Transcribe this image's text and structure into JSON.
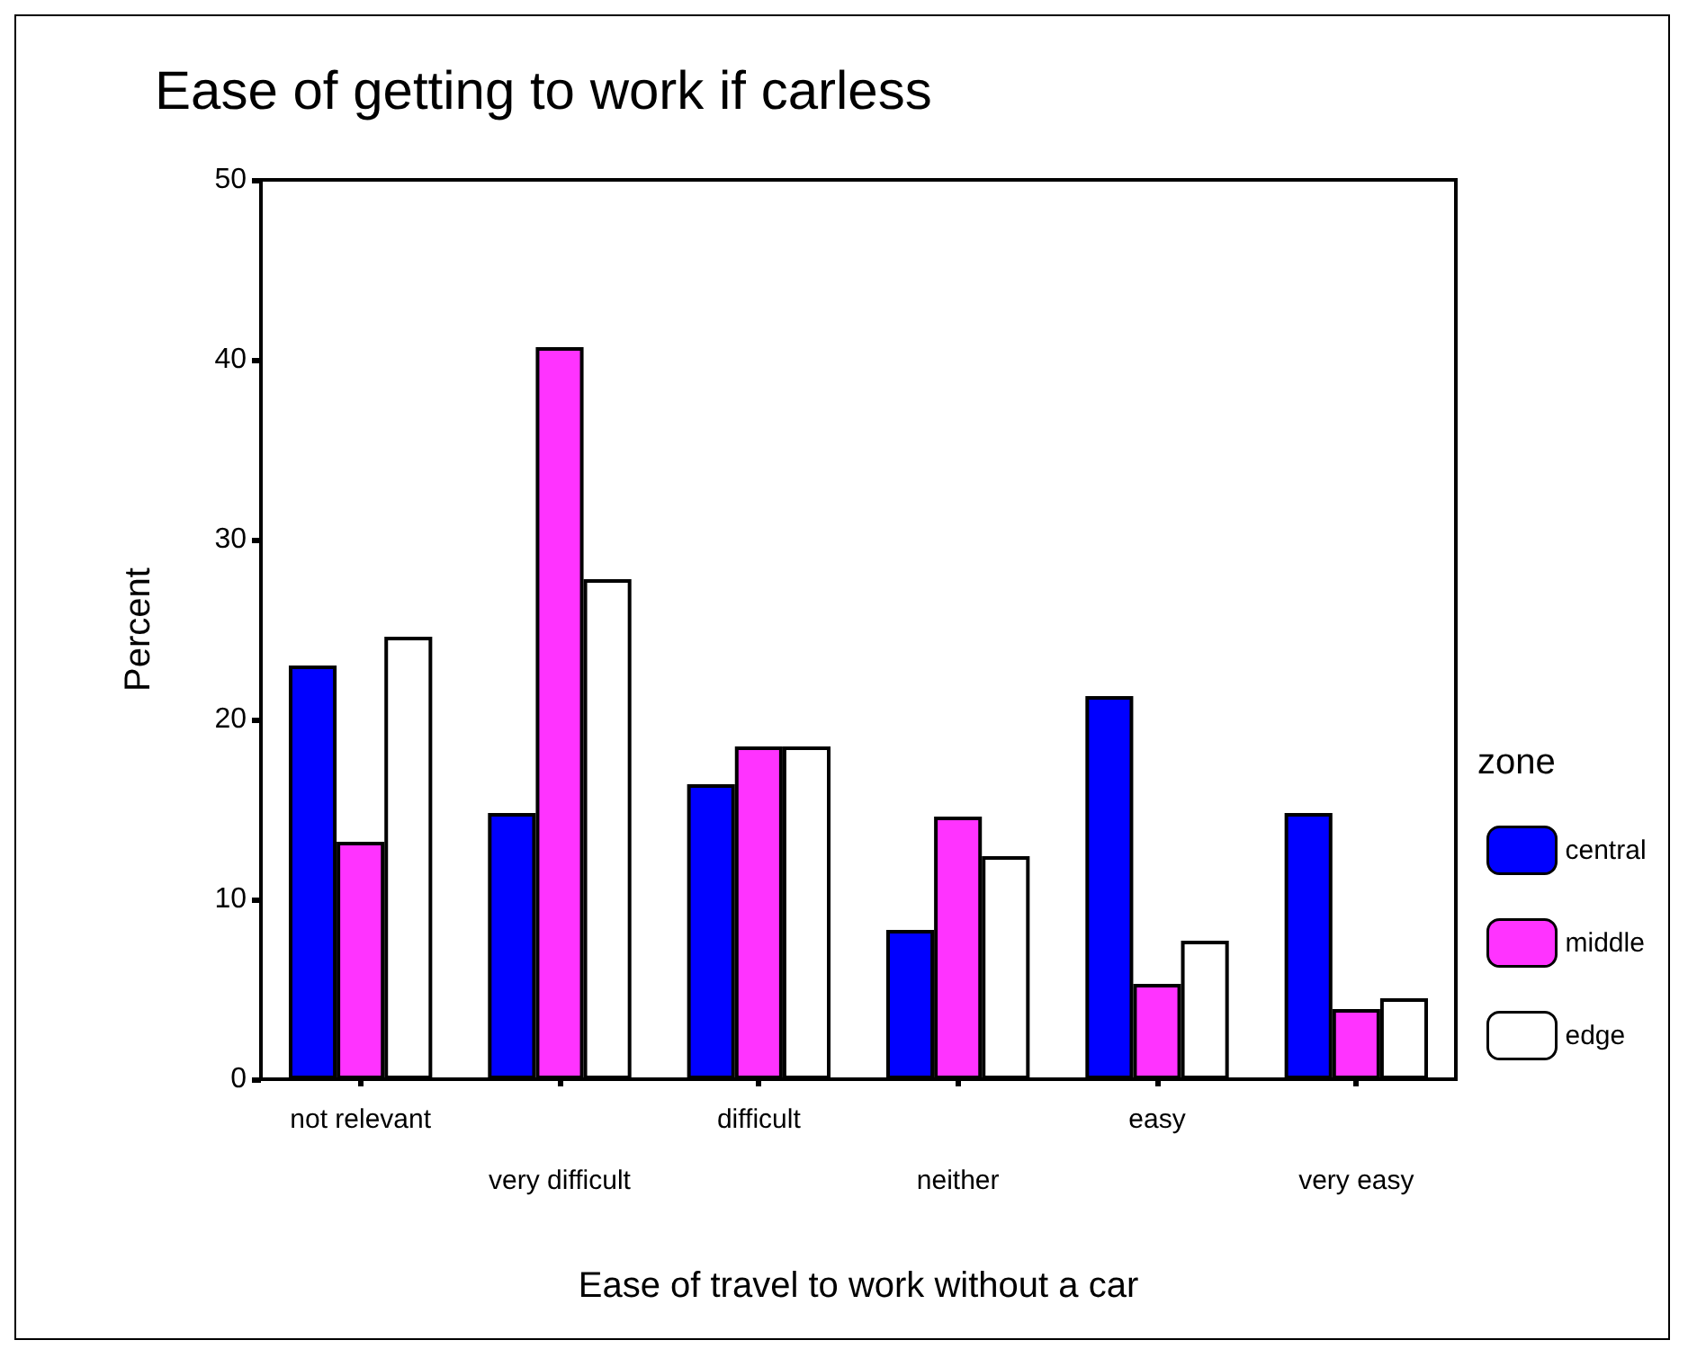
{
  "chart_data": {
    "type": "bar",
    "title": "Ease of getting to work if carless",
    "xlabel": "Ease of travel to work without a car",
    "ylabel": "Percent",
    "legend_title": "zone",
    "categories": [
      "not relevant",
      "very difficult",
      "difficult",
      "neither",
      "easy",
      "very easy"
    ],
    "series": [
      {
        "name": "central",
        "color": "#0000ff",
        "values": [
          23.0,
          14.8,
          16.4,
          8.3,
          21.3,
          14.8
        ]
      },
      {
        "name": "middle",
        "color": "#ff33ff",
        "values": [
          13.2,
          40.7,
          18.5,
          14.6,
          5.3,
          3.9
        ]
      },
      {
        "name": "edge",
        "color": "#ffffff",
        "values": [
          24.6,
          27.8,
          18.5,
          12.4,
          7.7,
          4.5
        ]
      }
    ],
    "ylim": [
      0,
      50
    ],
    "yticks": [
      0,
      10,
      20,
      30,
      40,
      50
    ],
    "grid": false,
    "legend": "right"
  }
}
